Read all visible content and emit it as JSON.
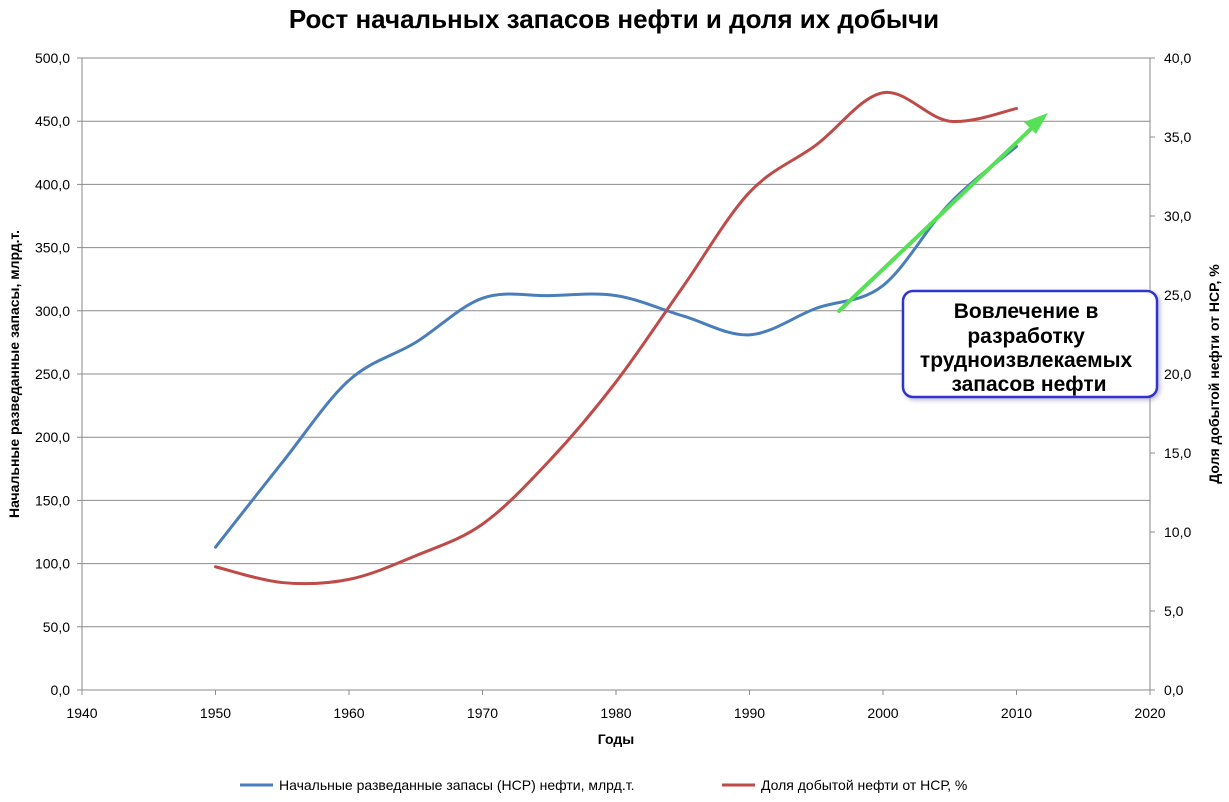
{
  "chart_data": {
    "type": "line",
    "title": "Рост начальных запасов нефти и доля их добычи",
    "xlabel": "Годы",
    "ylabel": "Начальные разведанные запасы, млрд.т.",
    "y2label": "Доля добытой нефти от НСР, %",
    "xlim": [
      1940,
      2020
    ],
    "ylim": [
      0,
      500
    ],
    "y2lim": [
      0,
      40
    ],
    "x_ticks": [
      "1940",
      "1950",
      "1960",
      "1970",
      "1980",
      "1990",
      "2000",
      "2010",
      "2020"
    ],
    "y_ticks": [
      "0,0",
      "50,0",
      "100,0",
      "150,0",
      "200,0",
      "250,0",
      "300,0",
      "350,0",
      "400,0",
      "450,0",
      "500,0"
    ],
    "y2_ticks": [
      "0,0",
      "5,0",
      "10,0",
      "15,0",
      "20,0",
      "25,0",
      "30,0",
      "35,0",
      "40,0"
    ],
    "grid": true,
    "legend_position": "bottom",
    "series": [
      {
        "name": "Начальные разведанные запасы (НСР) нефти, млрд.т.",
        "axis": "left",
        "color": "#4a7ebb",
        "x": [
          1950,
          1955,
          1960,
          1965,
          1970,
          1975,
          1980,
          1985,
          1990,
          1995,
          2000,
          2005,
          2010
        ],
        "y": [
          113,
          180,
          245,
          275,
          310,
          312,
          312,
          296,
          281,
          302,
          320,
          385,
          430
        ]
      },
      {
        "name": "Доля добытой нефти от НСР, %",
        "axis": "right",
        "color": "#be4b48",
        "x": [
          1950,
          1955,
          1960,
          1965,
          1970,
          1975,
          1980,
          1985,
          1990,
          1995,
          2000,
          2005,
          2010
        ],
        "y": [
          7.8,
          6.8,
          7.0,
          8.5,
          10.5,
          14.5,
          19.5,
          25.5,
          31.5,
          34.5,
          37.8,
          36.0,
          36.8
        ]
      }
    ],
    "annotation": {
      "text_lines": [
        "Вовлечение в",
        "разработку",
        "трудноизвлекаемых",
        "запасов нефти"
      ],
      "box_border_color": "#3333cc",
      "arrow_color": "#55e055"
    }
  }
}
